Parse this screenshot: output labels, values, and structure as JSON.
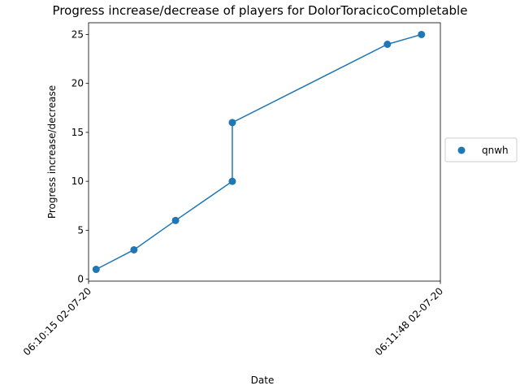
{
  "chart_data": {
    "type": "line",
    "title": "Progress increase/decrease of players for DolorToracicoCompletable",
    "xlabel": "Date",
    "ylabel": "Progress increase/decrease",
    "x_tick_labels": [
      "06:10:15 02-07-20",
      "06:11:48 02-07-20"
    ],
    "x_tick_values": [
      "06:10:15",
      "06:11:48"
    ],
    "xlim": [
      "06:10:15",
      "06:11:48"
    ],
    "ylim": [
      -0.2,
      26.2
    ],
    "y_ticks": [
      0,
      5,
      10,
      15,
      20,
      25
    ],
    "grid": false,
    "legend_position": "right",
    "series": [
      {
        "name": "qnwh",
        "color": "#1f77b4",
        "points": [
          {
            "x": "06:10:17",
            "y": 1
          },
          {
            "x": "06:10:27",
            "y": 3
          },
          {
            "x": "06:10:38",
            "y": 6
          },
          {
            "x": "06:10:53",
            "y": 10
          },
          {
            "x": "06:10:53",
            "y": 16
          },
          {
            "x": "06:11:34",
            "y": 24
          },
          {
            "x": "06:11:43",
            "y": 25
          }
        ]
      }
    ]
  }
}
